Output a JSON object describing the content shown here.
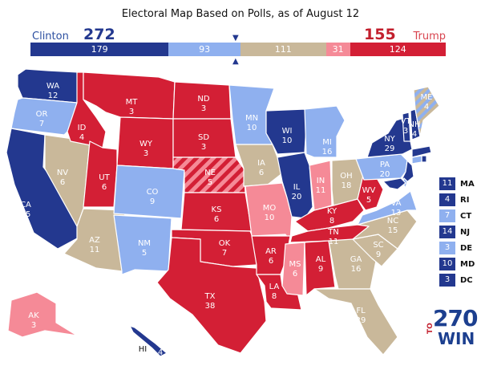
{
  "title": "Electoral Map Based on Polls, as of August 12",
  "clinton": {
    "name": "Clinton",
    "total": "272"
  },
  "trump": {
    "name": "Trump",
    "total": "155"
  },
  "bar_segments": [
    {
      "id": "safe-dem",
      "value": 179,
      "label": "179",
      "color": "#23388f"
    },
    {
      "id": "likely-dem",
      "value": 93,
      "label": "93",
      "color": "#8fb0ef"
    },
    {
      "id": "tossup",
      "value": 111,
      "label": "111",
      "color": "#c9b89a"
    },
    {
      "id": "likely-rep",
      "value": 31,
      "label": "31",
      "color": "#f58a97"
    },
    {
      "id": "safe-rep",
      "value": 124,
      "label": "124",
      "color": "#d31f35"
    }
  ],
  "colors": {
    "safe_dem": "#23388f",
    "likely_dem": "#8fb0ef",
    "tossup": "#c9b89a",
    "likely_rep": "#f58a97",
    "safe_rep": "#d31f35",
    "background": "#ffffff"
  },
  "states": [
    {
      "abbr": "WA",
      "votes": "12",
      "rating": "safe_dem"
    },
    {
      "abbr": "OR",
      "votes": "7",
      "rating": "likely_dem"
    },
    {
      "abbr": "CA",
      "votes": "55",
      "rating": "safe_dem"
    },
    {
      "abbr": "NV",
      "votes": "6",
      "rating": "tossup"
    },
    {
      "abbr": "ID",
      "votes": "4",
      "rating": "safe_rep"
    },
    {
      "abbr": "MT",
      "votes": "3",
      "rating": "safe_rep"
    },
    {
      "abbr": "WY",
      "votes": "3",
      "rating": "safe_rep"
    },
    {
      "abbr": "UT",
      "votes": "6",
      "rating": "safe_rep"
    },
    {
      "abbr": "AZ",
      "votes": "11",
      "rating": "tossup"
    },
    {
      "abbr": "CO",
      "votes": "9",
      "rating": "likely_dem"
    },
    {
      "abbr": "NM",
      "votes": "5",
      "rating": "likely_dem"
    },
    {
      "abbr": "ND",
      "votes": "3",
      "rating": "safe_rep"
    },
    {
      "abbr": "SD",
      "votes": "3",
      "rating": "safe_rep"
    },
    {
      "abbr": "NE",
      "votes": "5",
      "rating": "split"
    },
    {
      "abbr": "KS",
      "votes": "6",
      "rating": "safe_rep"
    },
    {
      "abbr": "OK",
      "votes": "7",
      "rating": "safe_rep"
    },
    {
      "abbr": "TX",
      "votes": "38",
      "rating": "safe_rep"
    },
    {
      "abbr": "MN",
      "votes": "10",
      "rating": "likely_dem"
    },
    {
      "abbr": "IA",
      "votes": "6",
      "rating": "tossup"
    },
    {
      "abbr": "MO",
      "votes": "10",
      "rating": "likely_rep"
    },
    {
      "abbr": "AR",
      "votes": "6",
      "rating": "safe_rep"
    },
    {
      "abbr": "LA",
      "votes": "8",
      "rating": "safe_rep"
    },
    {
      "abbr": "WI",
      "votes": "10",
      "rating": "safe_dem"
    },
    {
      "abbr": "IL",
      "votes": "20",
      "rating": "safe_dem"
    },
    {
      "abbr": "MI",
      "votes": "16",
      "rating": "likely_dem"
    },
    {
      "abbr": "IN",
      "votes": "11",
      "rating": "likely_rep"
    },
    {
      "abbr": "OH",
      "votes": "18",
      "rating": "tossup"
    },
    {
      "abbr": "KY",
      "votes": "8",
      "rating": "safe_rep"
    },
    {
      "abbr": "TN",
      "votes": "11",
      "rating": "safe_rep"
    },
    {
      "abbr": "MS",
      "votes": "6",
      "rating": "likely_rep"
    },
    {
      "abbr": "AL",
      "votes": "9",
      "rating": "safe_rep"
    },
    {
      "abbr": "GA",
      "votes": "16",
      "rating": "tossup"
    },
    {
      "abbr": "FL",
      "votes": "29",
      "rating": "tossup"
    },
    {
      "abbr": "SC",
      "votes": "9",
      "rating": "tossup"
    },
    {
      "abbr": "NC",
      "votes": "15",
      "rating": "tossup"
    },
    {
      "abbr": "VA",
      "votes": "13",
      "rating": "likely_dem"
    },
    {
      "abbr": "WV",
      "votes": "5",
      "rating": "safe_rep"
    },
    {
      "abbr": "PA",
      "votes": "20",
      "rating": "likely_dem"
    },
    {
      "abbr": "NY",
      "votes": "29",
      "rating": "safe_dem"
    },
    {
      "abbr": "VT",
      "votes": "3",
      "rating": "safe_dem"
    },
    {
      "abbr": "NH",
      "votes": "4",
      "rating": "safe_dem"
    },
    {
      "abbr": "ME",
      "votes": "4",
      "rating": "split"
    },
    {
      "abbr": "AK",
      "votes": "3",
      "rating": "likely_rep"
    },
    {
      "abbr": "HI",
      "votes": "4",
      "rating": "safe_dem"
    }
  ],
  "small_states": [
    {
      "abbr": "MA",
      "votes": "11",
      "rating": "safe_dem"
    },
    {
      "abbr": "RI",
      "votes": "4",
      "rating": "safe_dem"
    },
    {
      "abbr": "CT",
      "votes": "7",
      "rating": "likely_dem"
    },
    {
      "abbr": "NJ",
      "votes": "14",
      "rating": "safe_dem"
    },
    {
      "abbr": "DE",
      "votes": "3",
      "rating": "likely_dem"
    },
    {
      "abbr": "MD",
      "votes": "10",
      "rating": "safe_dem"
    },
    {
      "abbr": "DC",
      "votes": "3",
      "rating": "safe_dem"
    }
  ],
  "logo": {
    "number": "270",
    "to": "TO",
    "win": "WIN"
  }
}
